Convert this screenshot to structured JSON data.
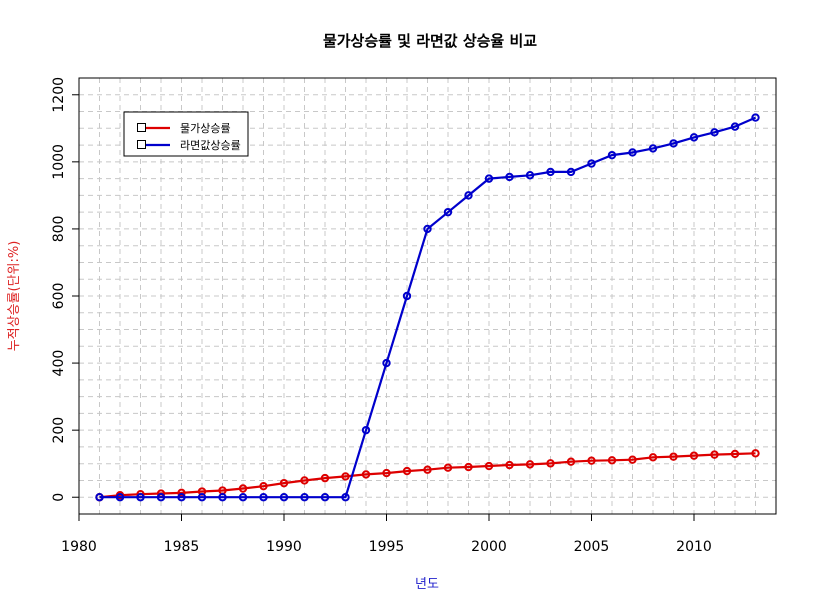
{
  "chart_data": {
    "type": "line",
    "title": "물가상승률 및 라면값 상승율 비교",
    "xlabel": "년도",
    "ylabel": "누적상승률(단위:%)",
    "xlim": [
      1980,
      2014
    ],
    "ylim": [
      -50,
      1250
    ],
    "x_ticks": [
      "1980",
      "1985",
      "1990",
      "1995",
      "2000",
      "2005",
      "2010"
    ],
    "y_ticks": [
      "0",
      "200",
      "400",
      "600",
      "800",
      "1000",
      "1200"
    ],
    "grid": true,
    "legend_position": "top-left",
    "colors": {
      "xlabel": "#2222cc",
      "ylabel": "#dd2222",
      "grid": "#c8c8c8"
    },
    "series": [
      {
        "name": "물가상승률",
        "color": "#dd0000",
        "x": [
          1981,
          1982,
          1983,
          1984,
          1985,
          1986,
          1987,
          1988,
          1989,
          1990,
          1991,
          1992,
          1993,
          1994,
          1995,
          1996,
          1997,
          1998,
          1999,
          2000,
          2001,
          2002,
          2003,
          2004,
          2005,
          2006,
          2007,
          2008,
          2009,
          2010,
          2011,
          2012,
          2013
        ],
        "values": [
          0,
          6,
          9,
          11,
          13,
          17,
          20,
          26,
          33,
          42,
          50,
          57,
          62,
          68,
          72,
          78,
          82,
          88,
          90,
          93,
          96,
          98,
          101,
          106,
          109,
          110,
          112,
          119,
          121,
          124,
          127,
          129,
          131
        ]
      },
      {
        "name": "라면값상승률",
        "color": "#0000cc",
        "x": [
          1981,
          1982,
          1983,
          1984,
          1985,
          1986,
          1987,
          1988,
          1989,
          1990,
          1991,
          1992,
          1993,
          1994,
          1995,
          1996,
          1997,
          1998,
          1999,
          2000,
          2001,
          2002,
          2003,
          2004,
          2005,
          2006,
          2007,
          2008,
          2009,
          2010,
          2011,
          2012,
          2013
        ],
        "values": [
          0,
          0,
          0,
          0,
          0,
          0,
          0,
          0,
          0,
          0,
          0,
          0,
          0,
          200,
          400,
          600,
          800,
          850,
          900,
          950,
          955,
          960,
          970,
          970,
          995,
          1020,
          1028,
          1040,
          1055,
          1073,
          1088,
          1105,
          1132
        ]
      }
    ]
  }
}
